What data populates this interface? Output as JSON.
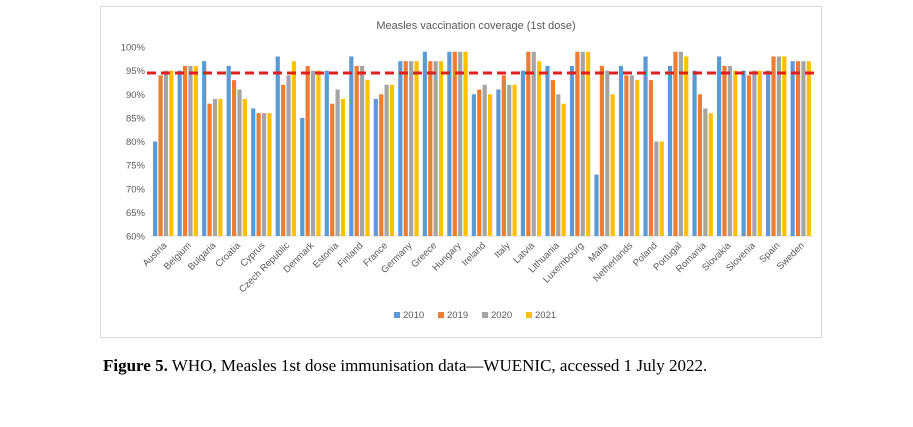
{
  "chart_data": {
    "type": "bar",
    "title": "Measles vaccination coverage (1st dose)",
    "xlabel": "",
    "ylabel": "",
    "ylim": [
      60,
      100
    ],
    "yticks": [
      "60%",
      "65%",
      "70%",
      "75%",
      "80%",
      "85%",
      "90%",
      "95%",
      "100%"
    ],
    "ytick_values": [
      60,
      65,
      70,
      75,
      80,
      85,
      90,
      95,
      100
    ],
    "grid": false,
    "reference_line": {
      "value": 94.5,
      "style": "dashed",
      "color": "#e02020"
    },
    "legend_position": "bottom",
    "categories": [
      "Austria",
      "Belgium",
      "Bulgaria",
      "Croatia",
      "Cyprus",
      "Czech Republic",
      "Denmark",
      "Estonia",
      "Finland",
      "France",
      "Germany",
      "Greece",
      "Hungary",
      "Ireland",
      "Italy",
      "Latvia",
      "Lithuania",
      "Luxembourg",
      "Malta",
      "Netherlands",
      "Poland",
      "Portugal",
      "Romania",
      "Slovakia",
      "Slovenia",
      "Spain",
      "Sweden"
    ],
    "series": [
      {
        "name": "2010",
        "color": "#5b9bd5",
        "values": [
          80,
          95,
          97,
          96,
          87,
          98,
          85,
          95,
          98,
          89,
          97,
          99,
          99,
          90,
          91,
          95,
          96,
          96,
          73,
          96,
          98,
          96,
          95,
          98,
          95,
          95,
          97
        ]
      },
      {
        "name": "2019",
        "color": "#ed7d31",
        "values": [
          94,
          96,
          88,
          93,
          86,
          92,
          96,
          88,
          96,
          90,
          97,
          97,
          99,
          91,
          94,
          99,
          93,
          99,
          96,
          94,
          93,
          99,
          90,
          96,
          94,
          98,
          97
        ]
      },
      {
        "name": "2020",
        "color": "#a5a5a5",
        "values": [
          95,
          96,
          89,
          91,
          86,
          94,
          95,
          91,
          96,
          92,
          97,
          97,
          99,
          92,
          92,
          99,
          90,
          99,
          95,
          94,
          80,
          99,
          87,
          96,
          95,
          98,
          97
        ]
      },
      {
        "name": "2021",
        "color": "#ffc000",
        "values": [
          95,
          96,
          89,
          89,
          86,
          97,
          95,
          89,
          93,
          92,
          97,
          97,
          99,
          90,
          92,
          97,
          88,
          99,
          90,
          93,
          80,
          98,
          86,
          95,
          95,
          98,
          97
        ]
      }
    ]
  },
  "caption": {
    "label": "Figure 5.",
    "text": " WHO, Measles 1st dose immunisation data—WUENIC, accessed 1 July 2022."
  }
}
